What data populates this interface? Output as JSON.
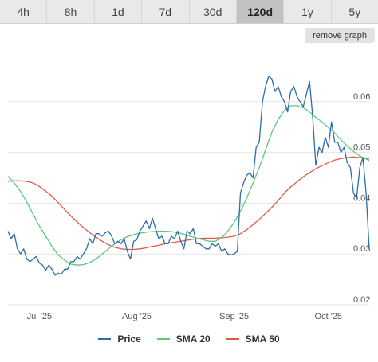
{
  "tabs": [
    {
      "label": "4h",
      "active": false
    },
    {
      "label": "8h",
      "active": false
    },
    {
      "label": "1d",
      "active": false
    },
    {
      "label": "7d",
      "active": false
    },
    {
      "label": "30d",
      "active": false
    },
    {
      "label": "120d",
      "active": true
    },
    {
      "label": "1y",
      "active": false
    },
    {
      "label": "5y",
      "active": false
    }
  ],
  "remove_graph_label": "remove graph",
  "colors": {
    "price": "#2b6ea8",
    "sma20": "#5cc87c",
    "sma50": "#e05a4a",
    "grid": "#e6e6e6",
    "axis_text": "#555555"
  },
  "chart_data": {
    "type": "line",
    "title": "",
    "xlabel": "",
    "ylabel": "",
    "ylim": [
      0.02,
      0.07
    ],
    "yticks": [
      0.02,
      0.03,
      0.04,
      0.05,
      0.06
    ],
    "ytick_labels": [
      "0.02",
      "0.03",
      "0.04",
      "0.05",
      "0.06"
    ],
    "xlim": [
      -10,
      105
    ],
    "xticks": [
      {
        "label": "Jul '25",
        "x": 0
      },
      {
        "label": "Aug '25",
        "x": 31
      },
      {
        "label": "Sep '25",
        "x": 62
      },
      {
        "label": "Oct '25",
        "x": 92
      }
    ],
    "grid": true,
    "legend_position": "bottom",
    "series": [
      {
        "name": "Price",
        "color_key": "price",
        "x": [
          -10,
          -9,
          -8,
          -7,
          -6,
          -5,
          -4,
          -3,
          -2,
          -1,
          0,
          1,
          2,
          3,
          4,
          5,
          6,
          7,
          8,
          9,
          10,
          11,
          12,
          13,
          14,
          15,
          16,
          17,
          18,
          19,
          20,
          21,
          22,
          23,
          24,
          25,
          26,
          27,
          28,
          29,
          30,
          31,
          32,
          33,
          34,
          35,
          36,
          37,
          38,
          39,
          40,
          41,
          42,
          43,
          44,
          45,
          46,
          47,
          48,
          49,
          50,
          51,
          52,
          53,
          54,
          55,
          56,
          57,
          58,
          59,
          60,
          61,
          62,
          63,
          64,
          65,
          66,
          67,
          68,
          69,
          70,
          71,
          72,
          73,
          74,
          75,
          76,
          77,
          78,
          79,
          80,
          81,
          82,
          83,
          84,
          85,
          86,
          87,
          88,
          89,
          90,
          91,
          92,
          93,
          94,
          95,
          96,
          97,
          98,
          99,
          100,
          101,
          102,
          103,
          104,
          105
        ],
        "y": [
          0.0345,
          0.033,
          0.034,
          0.031,
          0.03,
          0.031,
          0.029,
          0.0285,
          0.029,
          0.0295,
          0.0282,
          0.0278,
          0.0268,
          0.0278,
          0.027,
          0.0258,
          0.0262,
          0.026,
          0.027,
          0.027,
          0.0285,
          0.0285,
          0.0295,
          0.029,
          0.03,
          0.031,
          0.033,
          0.032,
          0.034,
          0.034,
          0.0335,
          0.0342,
          0.0345,
          0.0335,
          0.032,
          0.0325,
          0.032,
          0.033,
          0.0305,
          0.029,
          0.0325,
          0.0328,
          0.0345,
          0.0355,
          0.0365,
          0.035,
          0.037,
          0.035,
          0.033,
          0.0335,
          0.032,
          0.032,
          0.0335,
          0.033,
          0.0345,
          0.0325,
          0.031,
          0.0345,
          0.034,
          0.035,
          0.032,
          0.032,
          0.0315,
          0.031,
          0.031,
          0.032,
          0.0315,
          0.032,
          0.0305,
          0.031,
          0.03,
          0.0298,
          0.03,
          0.0305,
          0.042,
          0.044,
          0.0455,
          0.046,
          0.045,
          0.051,
          0.052,
          0.06,
          0.063,
          0.065,
          0.0645,
          0.062,
          0.063,
          0.061,
          0.06,
          0.058,
          0.062,
          0.063,
          0.061,
          0.06,
          0.059,
          0.0615,
          0.064,
          0.057,
          0.0475,
          0.051,
          0.05,
          0.053,
          0.051,
          0.056,
          0.052,
          0.052,
          0.05,
          0.051,
          0.048,
          0.047,
          0.042,
          0.041,
          0.047,
          0.049,
          0.042,
          0.031
        ]
      },
      {
        "name": "SMA 20",
        "color_key": "sma20",
        "x": [
          -10,
          -8,
          -6,
          -4,
          -2,
          0,
          2,
          4,
          6,
          8,
          10,
          12,
          14,
          16,
          18,
          20,
          22,
          24,
          26,
          28,
          30,
          32,
          34,
          36,
          38,
          40,
          42,
          44,
          46,
          48,
          50,
          52,
          54,
          56,
          58,
          60,
          62,
          64,
          66,
          68,
          70,
          72,
          74,
          76,
          78,
          80,
          82,
          84,
          86,
          88,
          90,
          92,
          94,
          96,
          98,
          100,
          102,
          104,
          105
        ],
        "y": [
          0.0453,
          0.044,
          0.0423,
          0.0402,
          0.0378,
          0.0355,
          0.0335,
          0.0315,
          0.0298,
          0.0288,
          0.028,
          0.0278,
          0.0279,
          0.0283,
          0.029,
          0.03,
          0.031,
          0.032,
          0.0328,
          0.0334,
          0.0338,
          0.0341,
          0.0343,
          0.0344,
          0.0345,
          0.0345,
          0.0344,
          0.0342,
          0.0339,
          0.0335,
          0.0331,
          0.0328,
          0.0325,
          0.0325,
          0.0332,
          0.0345,
          0.0362,
          0.0384,
          0.041,
          0.044,
          0.047,
          0.0505,
          0.054,
          0.0565,
          0.0583,
          0.0592,
          0.0592,
          0.0588,
          0.058,
          0.0569,
          0.056,
          0.0549,
          0.0538,
          0.0525,
          0.0513,
          0.0502,
          0.0493,
          0.0487,
          0.0484
        ]
      },
      {
        "name": "SMA 50",
        "color_key": "sma50",
        "x": [
          -10,
          -8,
          -6,
          -4,
          -2,
          0,
          2,
          4,
          6,
          8,
          10,
          12,
          14,
          16,
          18,
          20,
          22,
          24,
          26,
          28,
          30,
          32,
          34,
          36,
          38,
          40,
          42,
          44,
          46,
          48,
          50,
          52,
          54,
          56,
          58,
          60,
          62,
          64,
          66,
          68,
          70,
          72,
          74,
          76,
          78,
          80,
          82,
          84,
          86,
          88,
          90,
          92,
          94,
          96,
          98,
          100,
          102,
          104,
          105
        ],
        "y": [
          0.0443,
          0.0444,
          0.0444,
          0.0443,
          0.044,
          0.0433,
          0.0424,
          0.0414,
          0.0401,
          0.0388,
          0.0375,
          0.0363,
          0.0352,
          0.0342,
          0.0333,
          0.0325,
          0.0318,
          0.0313,
          0.031,
          0.0309,
          0.0309,
          0.031,
          0.0312,
          0.0315,
          0.0317,
          0.032,
          0.0322,
          0.0324,
          0.0326,
          0.0328,
          0.033,
          0.0331,
          0.0331,
          0.0331,
          0.0332,
          0.0333,
          0.0335,
          0.034,
          0.0348,
          0.0358,
          0.0368,
          0.038,
          0.0392,
          0.0405,
          0.042,
          0.0432,
          0.0442,
          0.0452,
          0.046,
          0.0468,
          0.0474,
          0.048,
          0.0485,
          0.0488,
          0.049,
          0.0491,
          0.049,
          0.0488,
          0.0487
        ]
      }
    ]
  }
}
